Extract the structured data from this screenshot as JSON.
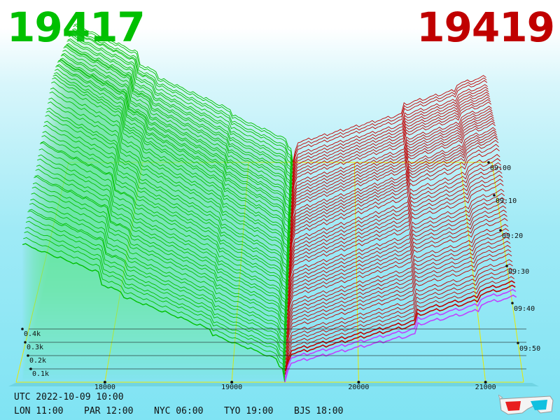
{
  "prices": {
    "bid": "19417",
    "ask": "19419"
  },
  "colors": {
    "bid": "#00c000",
    "ask": "#c00000",
    "grid": "#e8e800",
    "depth_line": "#111111",
    "ask_edge": "#c040ff"
  },
  "footer": {
    "utc": "UTC 2022-10-09 10:00",
    "zones": [
      "LON 11:00",
      "PAR 12:00",
      "NYC 06:00",
      "TYO 19:00",
      "BJS 18:00"
    ]
  },
  "chart_data": {
    "type": "area",
    "x_axis": {
      "ticks": [
        "18000",
        "19000",
        "20000",
        "21000"
      ],
      "range": [
        17300,
        21300
      ]
    },
    "depth_axis": {
      "ticks": [
        "0.1k",
        "0.2k",
        "0.3k",
        "0.4k"
      ]
    },
    "time_axis": {
      "ticks": [
        "09:00",
        "09:10",
        "09:20",
        "09:30",
        "09:40",
        "09:50"
      ]
    },
    "grid": true,
    "mid_price": 19418
  }
}
